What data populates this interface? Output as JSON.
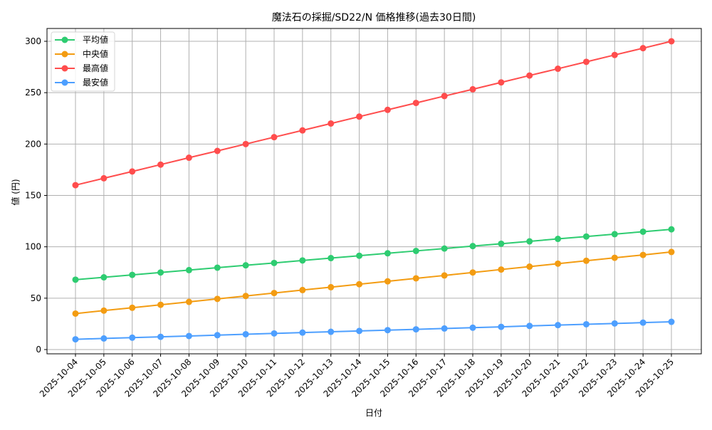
{
  "chart_data": {
    "type": "line",
    "title": "魔法石の採掘/SD22/N 価格推移(過去30日間)",
    "xlabel": "日付",
    "ylabel": "値 (円)",
    "ylim": [
      -8,
      315
    ],
    "yticks": [
      0,
      50,
      100,
      150,
      200,
      250,
      300
    ],
    "grid": true,
    "legend_position": "upper left",
    "categories": [
      "2025-10-04",
      "2025-10-05",
      "2025-10-06",
      "2025-10-07",
      "2025-10-08",
      "2025-10-09",
      "2025-10-10",
      "2025-10-11",
      "2025-10-12",
      "2025-10-13",
      "2025-10-14",
      "2025-10-15",
      "2025-10-16",
      "2025-10-17",
      "2025-10-18",
      "2025-10-19",
      "2025-10-20",
      "2025-10-21",
      "2025-10-22",
      "2025-10-23",
      "2025-10-24",
      "2025-10-25"
    ],
    "series": [
      {
        "name": "平均値",
        "color": "#2ecc71",
        "values": [
          68.0,
          70.3,
          72.7,
          75.0,
          77.3,
          79.7,
          82.0,
          84.3,
          86.7,
          89.0,
          91.3,
          93.7,
          96.0,
          98.3,
          100.7,
          103.0,
          105.3,
          107.7,
          110.0,
          112.3,
          114.7,
          117.0
        ]
      },
      {
        "name": "中央値",
        "color": "#f39c12",
        "values": [
          35.0,
          37.9,
          40.7,
          43.6,
          46.4,
          49.3,
          52.1,
          55.0,
          57.9,
          60.7,
          63.6,
          66.4,
          69.3,
          72.1,
          75.0,
          77.9,
          80.7,
          83.6,
          86.4,
          89.3,
          92.1,
          95.0
        ]
      },
      {
        "name": "最高値",
        "color": "#ff4d4d",
        "values": [
          160.0,
          166.7,
          173.3,
          180.0,
          186.7,
          193.3,
          200.0,
          206.7,
          213.3,
          220.0,
          226.7,
          233.3,
          240.0,
          246.7,
          253.3,
          260.0,
          266.7,
          273.3,
          280.0,
          286.7,
          293.3,
          300.0
        ]
      },
      {
        "name": "最安値",
        "color": "#4d9fff",
        "values": [
          10.0,
          10.8,
          11.6,
          12.4,
          13.2,
          14.0,
          14.9,
          15.7,
          16.5,
          17.3,
          18.1,
          18.9,
          19.7,
          20.5,
          21.3,
          22.1,
          23.0,
          23.8,
          24.6,
          25.4,
          26.2,
          27.0
        ]
      }
    ]
  }
}
